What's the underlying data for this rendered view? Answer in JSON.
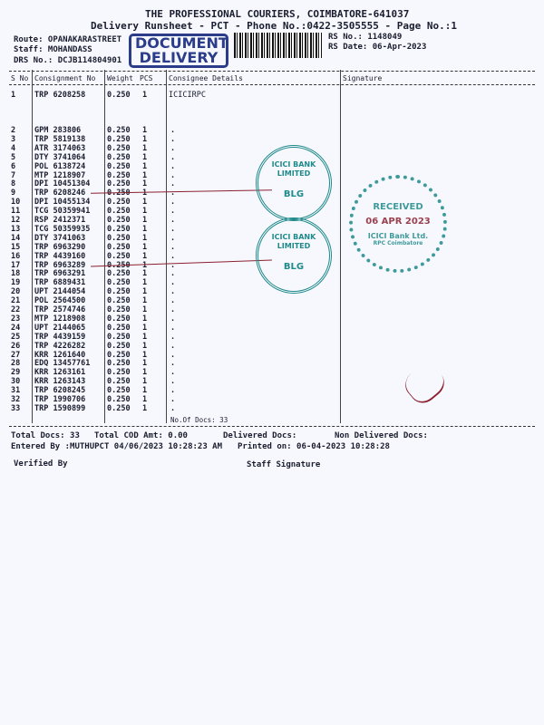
{
  "header": {
    "company": "THE PROFESSIONAL COURIERS, COIMBATORE-641037",
    "subtitle": "Delivery Runsheet - PCT - Phone No.:0422-3505555 - Page No.:1",
    "route": "Route: OPANAKARASTREET",
    "staff": "Staff: MOHANDASS",
    "drs": "DRS No.: DCJB114804901",
    "rs_no": "RS No.: 1148049",
    "rs_date": "RS Date: 06-Apr-2023"
  },
  "stamp_document_delivery": "DOCUMENT DELIVERY",
  "table": {
    "columns": [
      "S No",
      "Consignment No",
      "Weight",
      "PCS",
      "Consignee Details",
      "Signature"
    ],
    "first_row": {
      "sno": "1",
      "cons": "TRP 6208258",
      "weight": "0.250",
      "pcs": "1",
      "details": "ICICIRPC"
    },
    "rows": [
      [
        "2",
        "GPM 283806"
      ],
      [
        "3",
        "TRP 5819138"
      ],
      [
        "4",
        "ATR 3174063"
      ],
      [
        "5",
        "DTY 3741064"
      ],
      [
        "6",
        "POL 6138724"
      ],
      [
        "7",
        "MTP 1218907"
      ],
      [
        "8",
        "DPI 10451304"
      ],
      [
        "9",
        "TRP 6208246"
      ],
      [
        "10",
        "DPI 10455134"
      ],
      [
        "11",
        "TCG 50359941"
      ],
      [
        "12",
        "RSP 2412371"
      ],
      [
        "13",
        "TCG 50359935"
      ],
      [
        "14",
        "DTY 3741063"
      ],
      [
        "15",
        "TRP 6963290"
      ],
      [
        "16",
        "TRP 4439160"
      ],
      [
        "17",
        "TRP 6963289"
      ],
      [
        "18",
        "TRP 6963291"
      ],
      [
        "19",
        "TRP 6889431"
      ],
      [
        "20",
        "UPT 2144054"
      ],
      [
        "21",
        "POL 2564500"
      ],
      [
        "22",
        "TRP 2574746"
      ],
      [
        "23",
        "MTP 1218908"
      ],
      [
        "24",
        "UPT 2144065"
      ],
      [
        "25",
        "TRP 4439159"
      ],
      [
        "26",
        "TRP 4226282"
      ],
      [
        "27",
        "KRR 1261640"
      ],
      [
        "28",
        "EDQ 13457761"
      ],
      [
        "29",
        "KRR 1263161"
      ],
      [
        "30",
        "KRR 1263143"
      ],
      [
        "31",
        "TRP 6208245"
      ],
      [
        "32",
        "TRP 1990706"
      ],
      [
        "33",
        "TRP 1590899"
      ]
    ],
    "row_weight": "0.250",
    "row_pcs": "1",
    "row_details": ".",
    "no_of_docs": "No.Of Docs: 33"
  },
  "footer": {
    "total_docs": "Total Docs:  33",
    "total_cod": "Total COD Amt:    0.00",
    "delivered": "Delivered Docs:",
    "non_delivered": "Non Delivered Docs:",
    "entered_by": "Entered By :MUTHUPCT 04/06/2023 10:28:23 AM",
    "printed_on": "Printed on: 06-04-2023 10:28:28",
    "verified_by": "Verified By",
    "staff_signature": "Staff Signature"
  },
  "stamps": {
    "bank": "ICICI BANK LIMITED",
    "bank_code": "BLG",
    "received": "RECEIVED",
    "received_date": "06 APR 2023",
    "received_bank": "ICICI Bank Ltd.",
    "received_branch": "RPC Coimbatore"
  },
  "colors": {
    "stamp": "#1f8a8a",
    "ink": "#1a1d2e",
    "doc_stamp": "#2a3c8a"
  }
}
